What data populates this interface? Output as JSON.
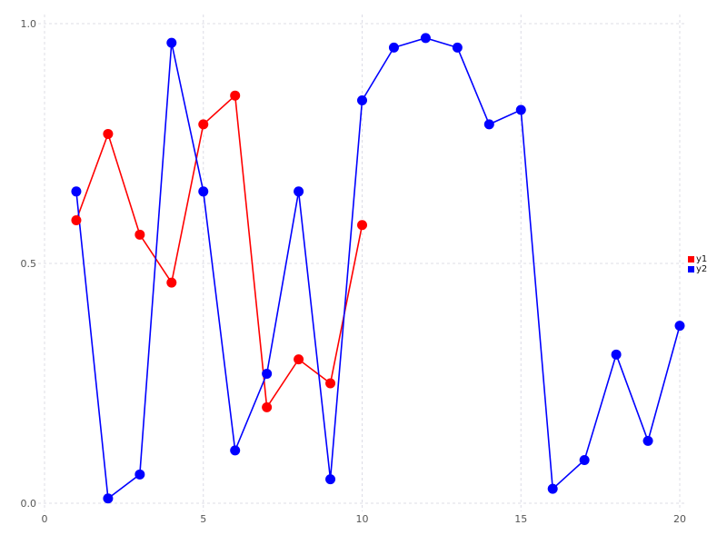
{
  "chart_data": {
    "type": "line",
    "title": "",
    "xlabel": "",
    "ylabel": "",
    "xlim": [
      0,
      20
    ],
    "ylim": [
      0.0,
      1.0
    ],
    "grid": "dashed",
    "legend_position": "right-outside",
    "xticks": {
      "values": [
        0,
        5,
        10,
        15,
        20
      ],
      "labels": [
        "0",
        "5",
        "10",
        "15",
        "20"
      ]
    },
    "yticks": {
      "values": [
        0.0,
        0.5,
        1.0
      ],
      "labels": [
        "0.0",
        "0.5",
        "1.0"
      ]
    },
    "series": [
      {
        "name": "y1",
        "color": "#ff0000",
        "marker": "circle",
        "x": [
          1,
          2,
          3,
          4,
          5,
          6,
          7,
          8,
          9,
          10
        ],
        "y": [
          0.59,
          0.77,
          0.56,
          0.46,
          0.79,
          0.85,
          0.2,
          0.3,
          0.25,
          0.58
        ]
      },
      {
        "name": "y2",
        "color": "#0000ff",
        "marker": "circle",
        "x": [
          1,
          2,
          3,
          4,
          5,
          6,
          7,
          8,
          9,
          10,
          11,
          12,
          13,
          14,
          15,
          16,
          17,
          18,
          19,
          20
        ],
        "y": [
          0.65,
          0.01,
          0.06,
          0.96,
          0.65,
          0.11,
          0.27,
          0.65,
          0.05,
          0.84,
          0.95,
          0.97,
          0.95,
          0.79,
          0.82,
          0.03,
          0.09,
          0.31,
          0.13,
          0.37
        ]
      }
    ]
  },
  "styles": {
    "background": "#ffffff",
    "grid_color": "#dcdce6",
    "tick_label_color": "#555555",
    "legend_text_color": "#111111",
    "series_red": "#ff0000",
    "series_blue": "#0000ff"
  }
}
